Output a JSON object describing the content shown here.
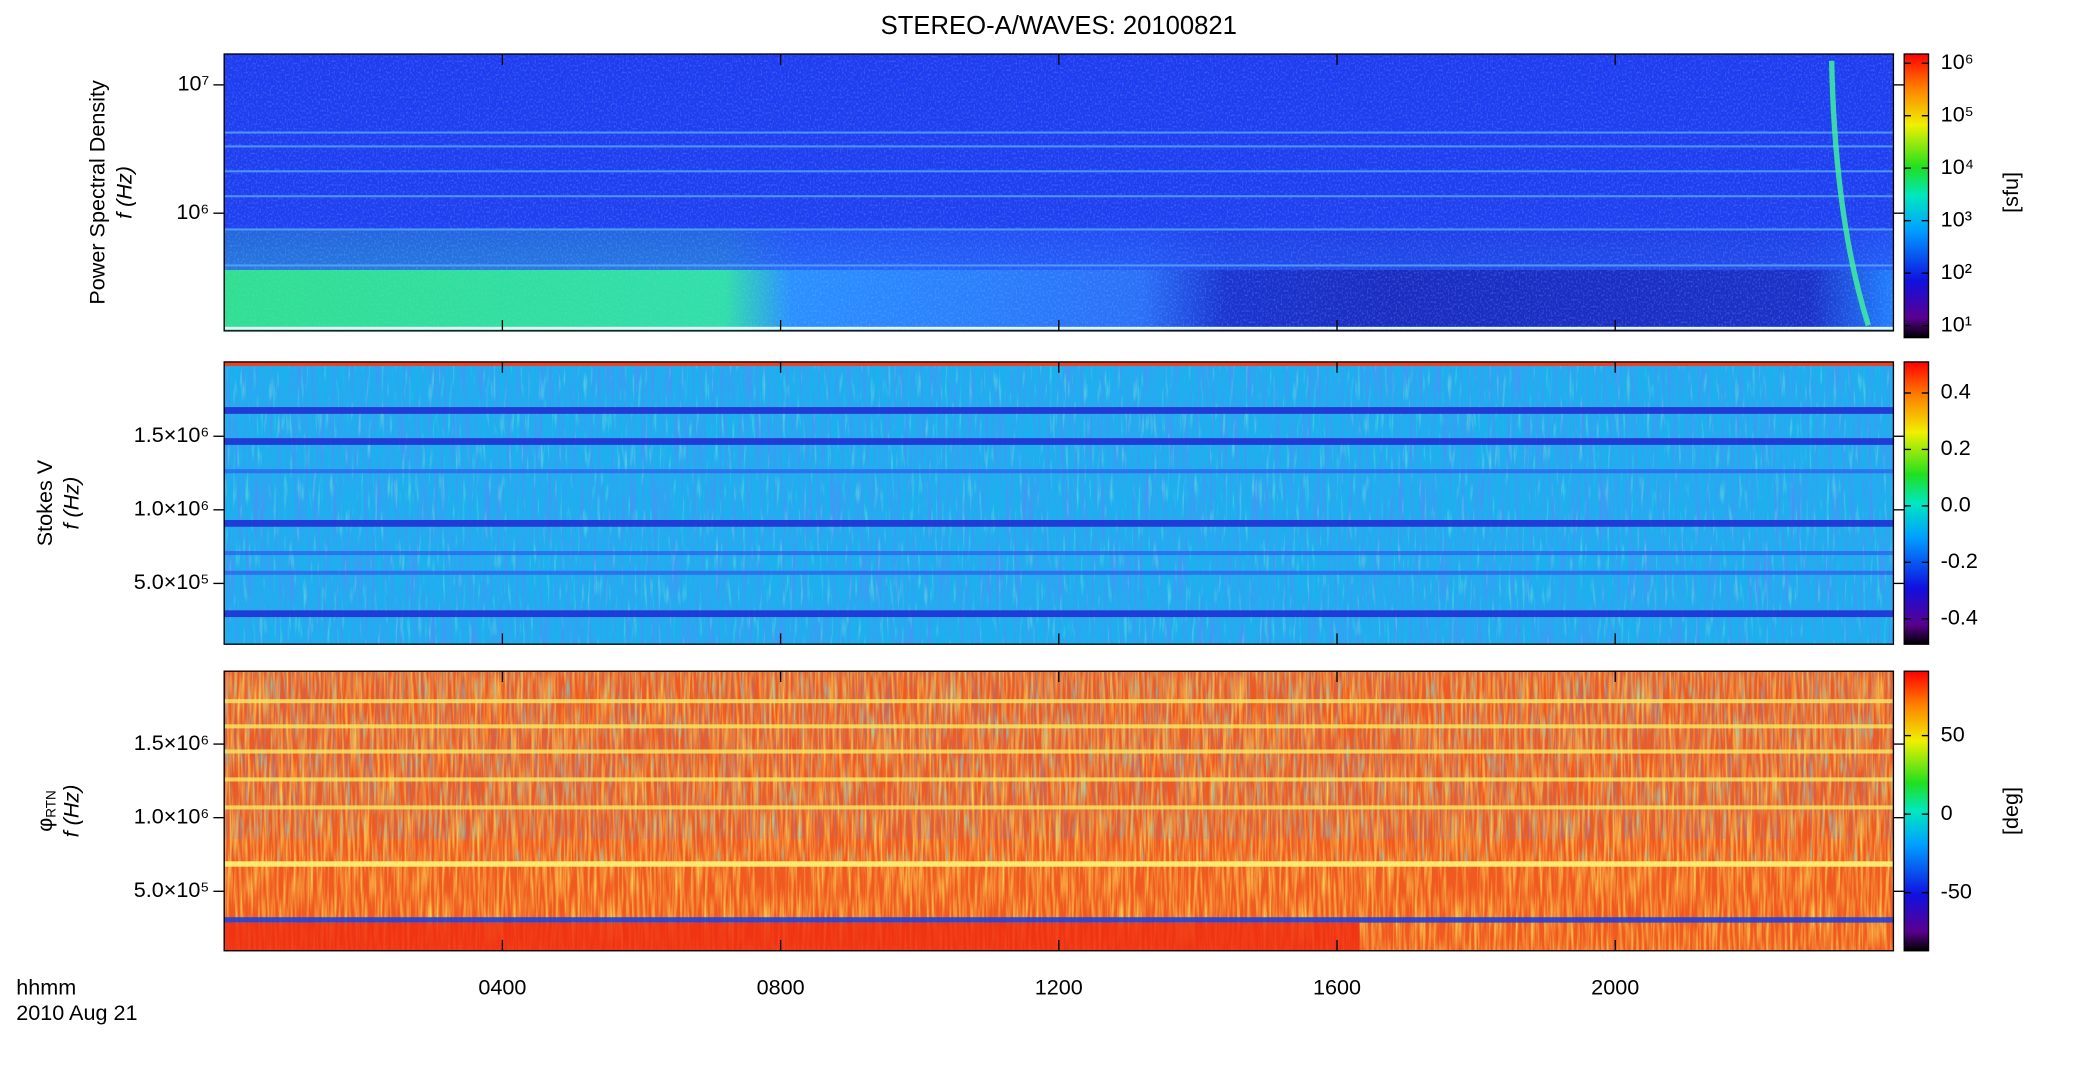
{
  "chart_data": [
    {
      "type": "heatmap",
      "title": "STEREO-A/WAVES: 20100821",
      "ylabel": "Power Spectral Density",
      "ylabel2": "f (Hz)",
      "y_log": true,
      "ylim": [
        121000,
        17400000
      ],
      "yticks": [
        {
          "value": 1000000,
          "label": "10⁶"
        },
        {
          "value": 10000000,
          "label": "10⁷"
        }
      ],
      "colorscale": "rainbow",
      "c_log": true,
      "clim": [
        5.9,
        1500000
      ],
      "cticks": [
        {
          "value": 10,
          "label": "10¹"
        },
        {
          "value": 100,
          "label": "10²"
        },
        {
          "value": 1000,
          "label": "10³"
        },
        {
          "value": 10000,
          "label": "10⁴"
        },
        {
          "value": 100000,
          "label": "10⁵"
        },
        {
          "value": 1000000,
          "label": "10⁶"
        }
      ],
      "clabel": "[sfu]"
    },
    {
      "type": "heatmap",
      "ylabel": "Stokes V",
      "ylabel2": "f (Hz)",
      "y_log": false,
      "ylim": [
        87000,
        2005000
      ],
      "yticks": [
        {
          "value": 500000,
          "label": "5.0×10⁵"
        },
        {
          "value": 1000000,
          "label": "1.0×10⁶"
        },
        {
          "value": 1500000,
          "label": "1.5×10⁶"
        }
      ],
      "colorscale": "rainbow",
      "c_log": false,
      "clim": [
        -0.49,
        0.51
      ],
      "cticks": [
        -0.4,
        -0.2,
        {
          "value": 0,
          "label": "0.0"
        },
        0.2,
        0.4
      ]
    },
    {
      "type": "heatmap",
      "ylabel": "φ",
      "ylabel_subscript": "RTN",
      "ylabel2": "f (Hz)",
      "y_log": false,
      "ylim": [
        96000,
        1995000
      ],
      "yticks": [
        {
          "value": 500000,
          "label": "5.0×10⁵"
        },
        {
          "value": 1000000,
          "label": "1.0×10⁶"
        },
        {
          "value": 1500000,
          "label": "1.5×10⁶"
        }
      ],
      "colorscale": "rainbow",
      "c_log": false,
      "clim": [
        -87,
        91
      ],
      "cticks": [
        -50,
        0,
        50
      ],
      "clabel": "[deg]",
      "xlim": [
        0,
        24
      ],
      "xticks": [
        {
          "value": 4,
          "label": "0400"
        },
        {
          "value": 8,
          "label": "0800"
        },
        {
          "value": 12,
          "label": "1200"
        },
        {
          "value": 16,
          "label": "1600"
        },
        {
          "value": 20,
          "label": "2000"
        }
      ],
      "xlabel": "hhmm",
      "date_label": "2010 Aug 21"
    }
  ]
}
